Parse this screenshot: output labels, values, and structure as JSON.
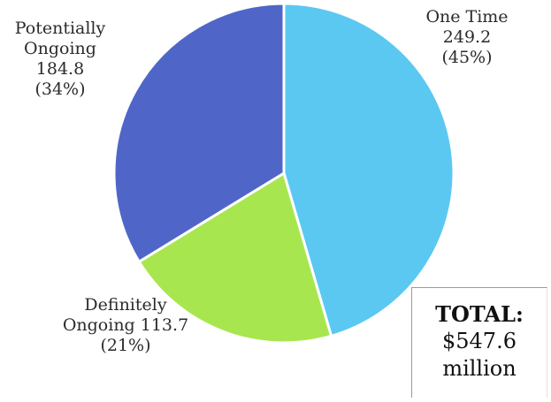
{
  "chart_data": {
    "type": "pie",
    "slices": [
      {
        "name": "One Time",
        "value": 249.2,
        "percent": "45%",
        "color": "#5bc8f2"
      },
      {
        "name": "Definitely Ongoing",
        "value": 113.7,
        "percent": "21%",
        "color": "#a8e64f"
      },
      {
        "name": "Potentially Ongoing",
        "value": 184.8,
        "percent": "34%",
        "color": "#4f66c8"
      }
    ],
    "start_angle_deg": 0,
    "direction": "clockwise",
    "slice_border_color": "#ffffff"
  },
  "labels": {
    "one_time": {
      "line1": "One Time",
      "line2": "249.2",
      "line3": "(45%)"
    },
    "definitely_ongoing": {
      "line1": "Definitely",
      "line2": "Ongoing  113.7",
      "line3": "(21%)"
    },
    "potentially_ongoing": {
      "line1": "Potentially",
      "line2": "Ongoing",
      "line3": "184.8",
      "line4": "(34%)"
    }
  },
  "total_box": {
    "title": "TOTAL:",
    "amount": "$547.6",
    "unit": "million"
  }
}
